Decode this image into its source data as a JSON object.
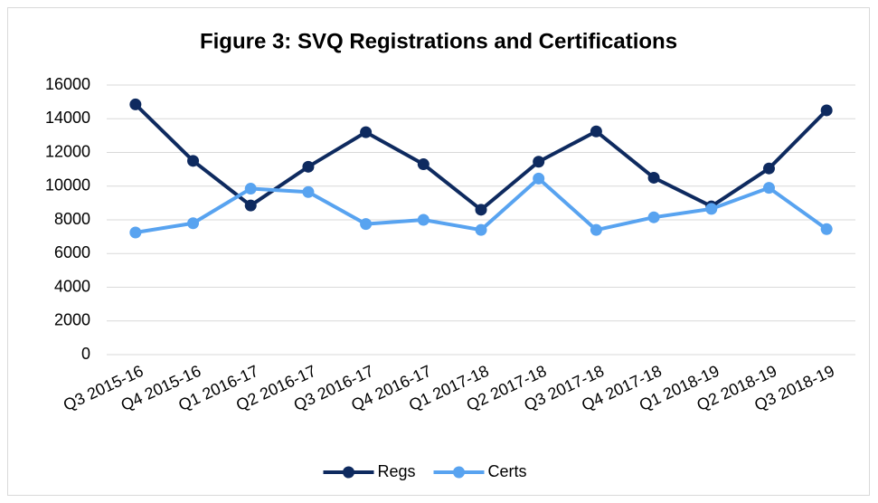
{
  "chart_data": {
    "type": "line",
    "title": "Figure 3: SVQ Registrations and Certifications",
    "categories": [
      "Q3 2015-16",
      "Q4 2015-16",
      "Q1 2016-17",
      "Q2 2016-17",
      "Q3 2016-17",
      "Q4 2016-17",
      "Q1 2017-18",
      "Q2 2017-18",
      "Q3 2017-18",
      "Q4 2017-18",
      "Q1 2018-19",
      "Q2 2018-19",
      "Q3 2018-19"
    ],
    "series": [
      {
        "name": "Regs",
        "color": "#0e2a5f",
        "values": [
          14850,
          11500,
          8850,
          11150,
          13200,
          11300,
          8600,
          11450,
          13250,
          10500,
          8800,
          11050,
          14500
        ]
      },
      {
        "name": "Certs",
        "color": "#58a3f0",
        "values": [
          7250,
          7800,
          9850,
          9650,
          7750,
          8000,
          7400,
          10450,
          7400,
          8150,
          8650,
          9900,
          7450
        ]
      }
    ],
    "ylim": [
      0,
      16000
    ],
    "yticks": [
      0,
      2000,
      4000,
      6000,
      8000,
      10000,
      12000,
      14000,
      16000
    ],
    "grid": true,
    "legend": "bottom"
  }
}
